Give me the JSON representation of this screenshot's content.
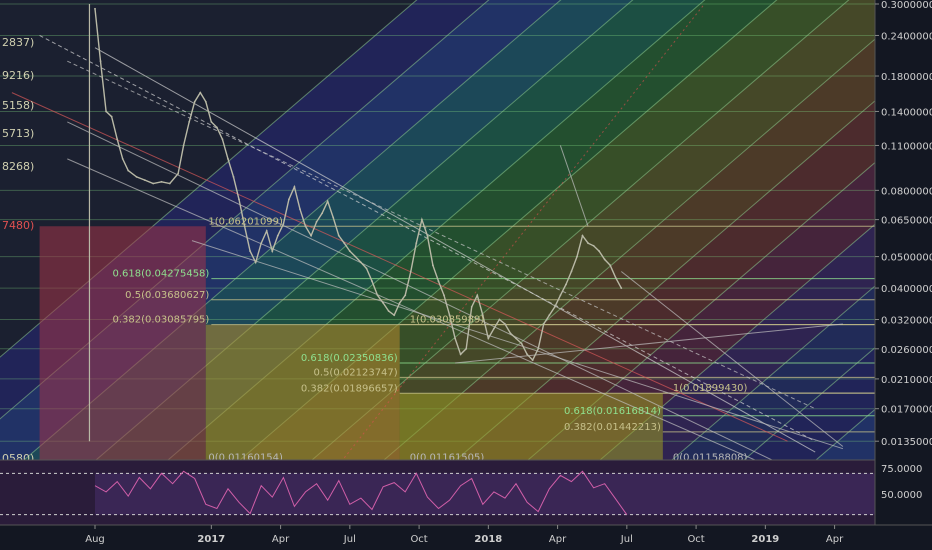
{
  "chart_data": {
    "type": "line",
    "price_scale": {
      "scale": "log",
      "ticks": [
        "0.30000000",
        "0.24000000",
        "0.18000000",
        "0.14000000",
        "0.11000000",
        "0.08000000",
        "0.06500000",
        "0.05000000",
        "0.04000000",
        "0.03200000",
        "0.02600000",
        "0.02100000",
        "0.01700000",
        "0.01350000"
      ],
      "partial_left_labels": [
        "2837)",
        "9216)",
        "5158)",
        "5713)",
        "8268)",
        "7480)",
        "0580)"
      ]
    },
    "rsi_scale": {
      "ticks": [
        "75.0000",
        "50.0000"
      ],
      "range": [
        20,
        80
      ],
      "overbought": 70,
      "oversold": 30
    },
    "time_axis": {
      "ticks": [
        "Aug",
        "2017",
        "Apr",
        "Jul",
        "Oct",
        "2018",
        "Apr",
        "Jul",
        "Oct",
        "2019",
        "Apr"
      ],
      "tick_t": [
        0.0,
        0.42,
        0.67,
        0.92,
        1.17,
        1.42,
        1.67,
        1.92,
        2.17,
        2.42,
        2.67
      ]
    },
    "fib_boxes": [
      {
        "t0": -0.2,
        "t1": 0.4,
        "top": 0.06201099,
        "bottom": 0.01160154,
        "color": "#a33448"
      },
      {
        "t0": 0.4,
        "t1": 1.1,
        "top": 0.03085989,
        "bottom": 0.01161505,
        "color": "#b68a2e"
      },
      {
        "t0": 1.1,
        "t1": 2.05,
        "top": 0.0189943,
        "bottom": 0.01158808,
        "color": "#9a9a22"
      }
    ],
    "fib_levels": [
      {
        "text": "1(0.06201099)",
        "t": 0.42,
        "price": 0.06201099,
        "color": "#c6c08a"
      },
      {
        "text": "0.618(0.04275458)",
        "t": 0.42,
        "price": 0.04275458,
        "color": "#8fe08f"
      },
      {
        "text": "0.5(0.03680627)",
        "t": 0.42,
        "price": 0.03680627,
        "color": "#c6c08a"
      },
      {
        "text": "0.382(0.03085795)",
        "t": 0.42,
        "price": 0.03085795,
        "color": "#c6c08a"
      },
      {
        "text": "0(0.01160154)",
        "t": 0.42,
        "price": 0.01160154,
        "color": "#b8b8b8"
      },
      {
        "text": "1(0.03085989)",
        "t": 1.1,
        "price": 0.03085989,
        "color": "#c6c08a"
      },
      {
        "text": "0.618(0.02350836)",
        "t": 1.1,
        "price": 0.02350836,
        "color": "#8fe08f"
      },
      {
        "text": "0.5(0.02123747)",
        "t": 1.1,
        "price": 0.02123747,
        "color": "#c6c08a"
      },
      {
        "text": "0.382(0.01896657)",
        "t": 1.1,
        "price": 0.01896657,
        "color": "#c6c08a"
      },
      {
        "text": "0(0.01161505)",
        "t": 1.1,
        "price": 0.01161505,
        "color": "#b8b8b8"
      },
      {
        "text": "1(0.01899430)",
        "t": 2.05,
        "price": 0.0189943,
        "color": "#c6c08a"
      },
      {
        "text": "0.618(0.01616814)",
        "t": 2.05,
        "price": 0.01616814,
        "color": "#8fe08f"
      },
      {
        "text": "0.382(0.01442213)",
        "t": 2.05,
        "price": 0.01442213,
        "color": "#c6c08a"
      },
      {
        "text": "0(0.01158808)",
        "t": 2.05,
        "price": 0.01158808,
        "color": "#b8b8b8"
      }
    ],
    "series": [
      {
        "role": "price",
        "color": "#b9b9a6",
        "points": [
          [
            0.0,
            0.29
          ],
          [
            0.02,
            0.2
          ],
          [
            0.04,
            0.14
          ],
          [
            0.06,
            0.135
          ],
          [
            0.08,
            0.115
          ],
          [
            0.1,
            0.1
          ],
          [
            0.12,
            0.092
          ],
          [
            0.15,
            0.088
          ],
          [
            0.18,
            0.086
          ],
          [
            0.21,
            0.084
          ],
          [
            0.24,
            0.085
          ],
          [
            0.27,
            0.084
          ],
          [
            0.3,
            0.09
          ],
          [
            0.32,
            0.11
          ],
          [
            0.34,
            0.13
          ],
          [
            0.36,
            0.15
          ],
          [
            0.38,
            0.16
          ],
          [
            0.4,
            0.15
          ],
          [
            0.42,
            0.13
          ],
          [
            0.44,
            0.125
          ],
          [
            0.46,
            0.115
          ],
          [
            0.48,
            0.1
          ],
          [
            0.5,
            0.088
          ],
          [
            0.52,
            0.075
          ],
          [
            0.54,
            0.062
          ],
          [
            0.56,
            0.052
          ],
          [
            0.58,
            0.048
          ],
          [
            0.6,
            0.055
          ],
          [
            0.62,
            0.06
          ],
          [
            0.64,
            0.052
          ],
          [
            0.66,
            0.058
          ],
          [
            0.68,
            0.063
          ],
          [
            0.7,
            0.075
          ],
          [
            0.72,
            0.082
          ],
          [
            0.74,
            0.07
          ],
          [
            0.76,
            0.062
          ],
          [
            0.78,
            0.058
          ],
          [
            0.8,
            0.064
          ],
          [
            0.82,
            0.068
          ],
          [
            0.84,
            0.074
          ],
          [
            0.86,
            0.066
          ],
          [
            0.88,
            0.058
          ],
          [
            0.9,
            0.055
          ],
          [
            0.92,
            0.052
          ],
          [
            0.94,
            0.05
          ],
          [
            0.96,
            0.048
          ],
          [
            0.98,
            0.046
          ],
          [
            1.0,
            0.042
          ],
          [
            1.02,
            0.038
          ],
          [
            1.04,
            0.036
          ],
          [
            1.06,
            0.034
          ],
          [
            1.08,
            0.033
          ],
          [
            1.1,
            0.036
          ],
          [
            1.12,
            0.038
          ],
          [
            1.14,
            0.045
          ],
          [
            1.16,
            0.055
          ],
          [
            1.18,
            0.065
          ],
          [
            1.2,
            0.058
          ],
          [
            1.22,
            0.047
          ],
          [
            1.24,
            0.042
          ],
          [
            1.26,
            0.038
          ],
          [
            1.28,
            0.033
          ],
          [
            1.3,
            0.028
          ],
          [
            1.32,
            0.025
          ],
          [
            1.34,
            0.026
          ],
          [
            1.36,
            0.035
          ],
          [
            1.38,
            0.038
          ],
          [
            1.4,
            0.033
          ],
          [
            1.42,
            0.028
          ],
          [
            1.44,
            0.03
          ],
          [
            1.46,
            0.032
          ],
          [
            1.48,
            0.031
          ],
          [
            1.5,
            0.029
          ],
          [
            1.52,
            0.028
          ],
          [
            1.54,
            0.027
          ],
          [
            1.56,
            0.025
          ],
          [
            1.58,
            0.024
          ],
          [
            1.6,
            0.026
          ],
          [
            1.62,
            0.031
          ],
          [
            1.64,
            0.033
          ],
          [
            1.66,
            0.035
          ],
          [
            1.68,
            0.038
          ],
          [
            1.7,
            0.041
          ],
          [
            1.72,
            0.045
          ],
          [
            1.74,
            0.05
          ],
          [
            1.76,
            0.058
          ],
          [
            1.78,
            0.055
          ],
          [
            1.8,
            0.054
          ],
          [
            1.82,
            0.052
          ],
          [
            1.84,
            0.049
          ],
          [
            1.86,
            0.047
          ],
          [
            1.88,
            0.043
          ],
          [
            1.9,
            0.04
          ]
        ]
      },
      {
        "role": "rsi",
        "color": "#d05ea8",
        "points": [
          [
            0.0,
            58
          ],
          [
            0.04,
            52
          ],
          [
            0.08,
            62
          ],
          [
            0.12,
            48
          ],
          [
            0.16,
            66
          ],
          [
            0.2,
            55
          ],
          [
            0.24,
            70
          ],
          [
            0.28,
            60
          ],
          [
            0.32,
            72
          ],
          [
            0.36,
            65
          ],
          [
            0.4,
            40
          ],
          [
            0.44,
            36
          ],
          [
            0.48,
            55
          ],
          [
            0.52,
            42
          ],
          [
            0.56,
            31
          ],
          [
            0.6,
            58
          ],
          [
            0.64,
            47
          ],
          [
            0.68,
            66
          ],
          [
            0.72,
            38
          ],
          [
            0.76,
            52
          ],
          [
            0.8,
            60
          ],
          [
            0.84,
            44
          ],
          [
            0.88,
            63
          ],
          [
            0.92,
            40
          ],
          [
            0.96,
            46
          ],
          [
            1.0,
            35
          ],
          [
            1.04,
            57
          ],
          [
            1.08,
            61
          ],
          [
            1.12,
            52
          ],
          [
            1.16,
            70
          ],
          [
            1.2,
            47
          ],
          [
            1.24,
            36
          ],
          [
            1.28,
            44
          ],
          [
            1.32,
            58
          ],
          [
            1.36,
            65
          ],
          [
            1.4,
            40
          ],
          [
            1.44,
            52
          ],
          [
            1.48,
            46
          ],
          [
            1.52,
            60
          ],
          [
            1.56,
            42
          ],
          [
            1.6,
            33
          ],
          [
            1.64,
            55
          ],
          [
            1.68,
            68
          ],
          [
            1.72,
            62
          ],
          [
            1.76,
            72
          ],
          [
            1.8,
            56
          ],
          [
            1.84,
            60
          ],
          [
            1.88,
            45
          ],
          [
            1.92,
            30
          ]
        ]
      }
    ]
  }
}
